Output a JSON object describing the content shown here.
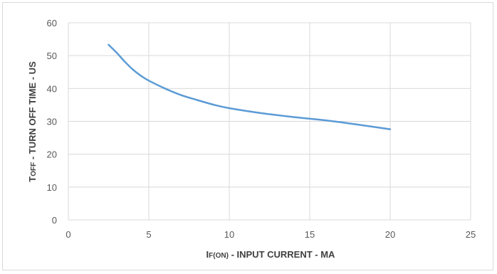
{
  "chart_data": {
    "type": "line",
    "x_ticks": [
      "0",
      "5",
      "10",
      "15",
      "20",
      "25"
    ],
    "y_ticks": [
      "0",
      "10",
      "20",
      "30",
      "40",
      "50",
      "60"
    ],
    "xlim": [
      0,
      25
    ],
    "ylim": [
      0,
      60
    ],
    "grid": true,
    "xlabel": {
      "main": "I",
      "sub": "F(ON)",
      "rest": " - INPUT CURRENT - MA"
    },
    "ylabel": {
      "main": "T",
      "sub": "OFF",
      "rest": " - TURN OFF TIME - US"
    },
    "series": [
      {
        "color": "#5b9bd5",
        "x": [
          2.5,
          3,
          3.5,
          4,
          4.5,
          5,
          6,
          7,
          8,
          9,
          10,
          12,
          14,
          16,
          18,
          20
        ],
        "y": [
          53.3,
          50.9,
          48.2,
          45.8,
          43.9,
          42.4,
          40.0,
          38.0,
          36.5,
          35.1,
          34.0,
          32.5,
          31.3,
          30.3,
          29.0,
          27.6
        ]
      }
    ]
  }
}
